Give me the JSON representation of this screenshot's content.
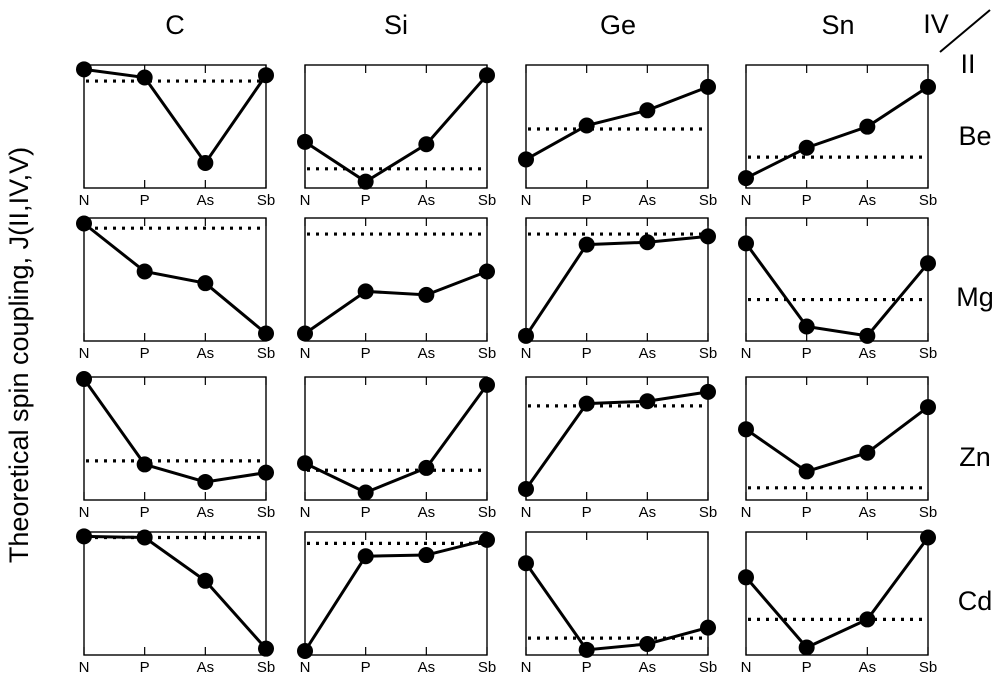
{
  "ylabel": "Theoretical spin coupling, J(II,IV,V)",
  "corner_label": {
    "top": "IV",
    "bottom": "II"
  },
  "column_labels": [
    "C",
    "Si",
    "Ge",
    "Sn"
  ],
  "row_labels": [
    "Be",
    "Mg",
    "Zn",
    "Cd"
  ],
  "chart_data": {
    "type": "line",
    "layout": "small-multiples grid 4x4",
    "x_categories": [
      "N",
      "P",
      "As",
      "Sb"
    ],
    "ylim": [
      0,
      1
    ],
    "note": "Values are relative positions within each panel's y-range (0 = bottom, 1 = top); no y tick labels are shown in the figure.",
    "panels": [
      {
        "row": "Be",
        "col": "C",
        "values": [
          0.98,
          0.91,
          0.18,
          0.93
        ],
        "dotted_reference": 0.88
      },
      {
        "row": "Be",
        "col": "Si",
        "values": [
          0.36,
          0.02,
          0.34,
          0.93
        ],
        "dotted_reference": 0.13
      },
      {
        "row": "Be",
        "col": "Ge",
        "values": [
          0.21,
          0.5,
          0.63,
          0.83
        ],
        "dotted_reference": 0.47
      },
      {
        "row": "Be",
        "col": "Sn",
        "values": [
          0.05,
          0.31,
          0.49,
          0.83
        ],
        "dotted_reference": 0.23
      },
      {
        "row": "Mg",
        "col": "C",
        "values": [
          0.97,
          0.56,
          0.46,
          0.03
        ],
        "dotted_reference": 0.93
      },
      {
        "row": "Mg",
        "col": "Si",
        "values": [
          0.03,
          0.39,
          0.36,
          0.56
        ],
        "dotted_reference": 0.88
      },
      {
        "row": "Mg",
        "col": "Ge",
        "values": [
          0.01,
          0.79,
          0.81,
          0.86
        ],
        "dotted_reference": 0.88
      },
      {
        "row": "Mg",
        "col": "Sn",
        "values": [
          0.8,
          0.09,
          0.01,
          0.63
        ],
        "dotted_reference": 0.32
      },
      {
        "row": "Zn",
        "col": "C",
        "values": [
          1.0,
          0.27,
          0.12,
          0.2
        ],
        "dotted_reference": 0.3
      },
      {
        "row": "Zn",
        "col": "Si",
        "values": [
          0.28,
          0.03,
          0.24,
          0.95
        ],
        "dotted_reference": 0.22
      },
      {
        "row": "Zn",
        "col": "Ge",
        "values": [
          0.06,
          0.79,
          0.81,
          0.89
        ],
        "dotted_reference": 0.77
      },
      {
        "row": "Zn",
        "col": "Sn",
        "values": [
          0.57,
          0.21,
          0.37,
          0.76
        ],
        "dotted_reference": 0.07
      },
      {
        "row": "Cd",
        "col": "C",
        "values": [
          0.98,
          0.97,
          0.6,
          0.02
        ],
        "dotted_reference": 0.97
      },
      {
        "row": "Cd",
        "col": "Si",
        "values": [
          0.0,
          0.81,
          0.82,
          0.95
        ],
        "dotted_reference": 0.92
      },
      {
        "row": "Cd",
        "col": "Ge",
        "values": [
          0.75,
          0.01,
          0.06,
          0.2
        ],
        "dotted_reference": 0.11
      },
      {
        "row": "Cd",
        "col": "Sn",
        "values": [
          0.63,
          0.03,
          0.27,
          0.97
        ],
        "dotted_reference": 0.27
      }
    ]
  }
}
